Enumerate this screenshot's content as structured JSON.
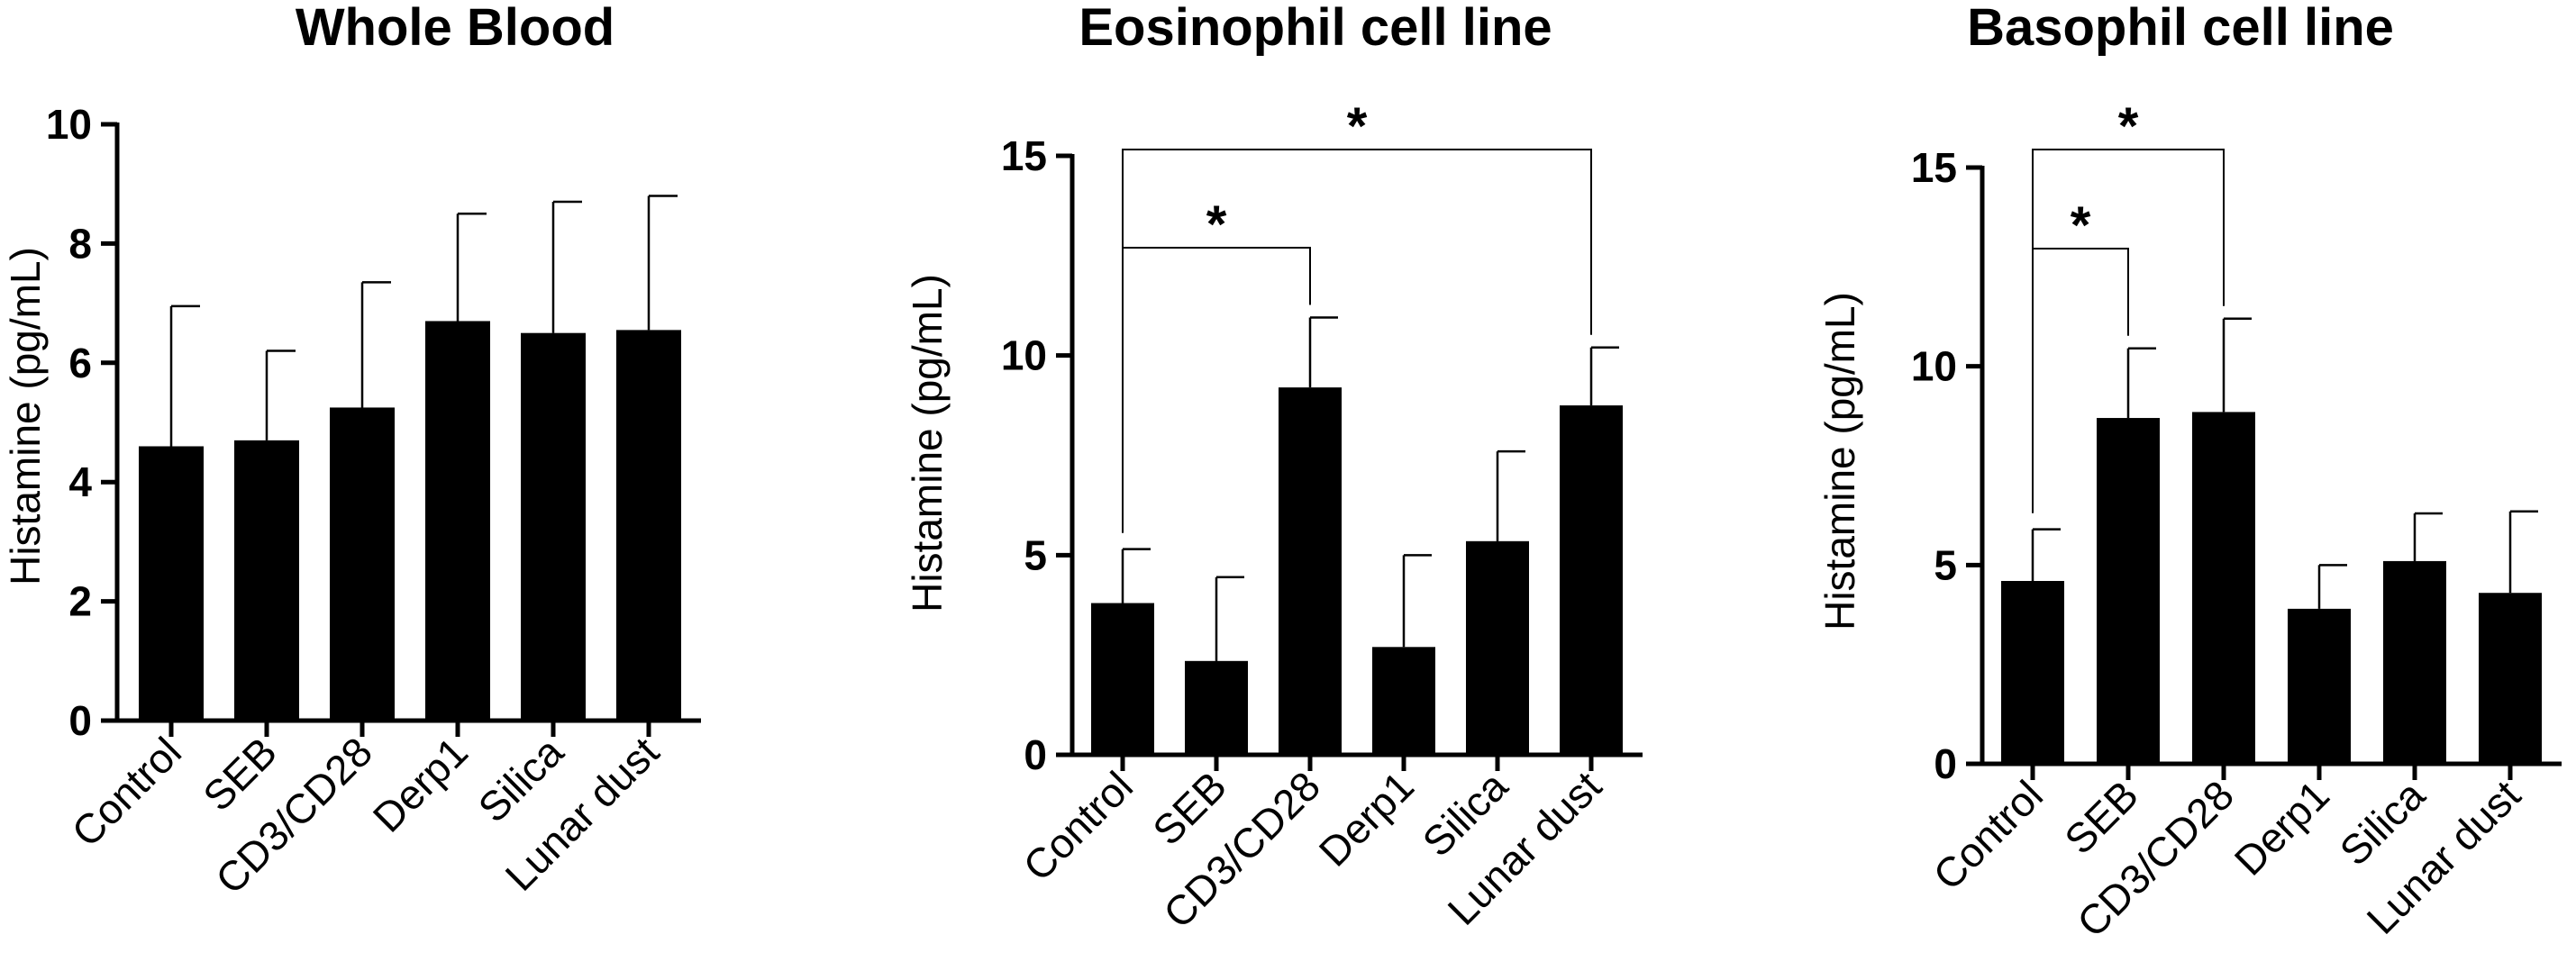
{
  "chart_data": [
    {
      "type": "bar",
      "title": "Whole Blood",
      "ylabel": "Histamine (pg/mL)",
      "categories": [
        "Control",
        "SEB",
        "CD3/CD28",
        "Derp1",
        "Silica",
        "Lunar dust"
      ],
      "values": [
        4.6,
        4.7,
        5.25,
        6.7,
        6.5,
        6.55
      ],
      "errors": [
        2.35,
        1.5,
        2.1,
        1.8,
        2.2,
        2.25
      ],
      "ylim": [
        0,
        10
      ],
      "yticks": [
        "0",
        "2",
        "4",
        "6",
        "8",
        "10"
      ],
      "significance": [],
      "bar_color": "#000000"
    },
    {
      "type": "bar",
      "title": "Eosinophil cell line",
      "ylabel": "Histamine (pg/mL)",
      "categories": [
        "Control",
        "SEB",
        "CD3/CD28",
        "Derp1",
        "Silica",
        "Lunar dust"
      ],
      "values": [
        3.8,
        2.35,
        9.2,
        2.7,
        5.35,
        8.75
      ],
      "errors": [
        1.35,
        2.1,
        1.75,
        2.3,
        2.25,
        1.45
      ],
      "ylim": [
        0,
        15
      ],
      "yticks": [
        "0",
        "5",
        "10",
        "15"
      ],
      "significance": [
        {
          "from": 0,
          "to": 2,
          "label": "*"
        },
        {
          "from": 0,
          "to": 5,
          "label": "*"
        }
      ],
      "bar_color": "#000000"
    },
    {
      "type": "bar",
      "title": "Basophil cell line",
      "ylabel": "Histamine (pg/mL)",
      "categories": [
        "Control",
        "SEB",
        "CD3/CD28",
        "Derp1",
        "Silica",
        "Lunar dust"
      ],
      "values": [
        4.6,
        8.7,
        8.85,
        3.9,
        5.1,
        4.3
      ],
      "errors": [
        1.3,
        1.75,
        2.35,
        1.1,
        1.2,
        2.05
      ],
      "ylim": [
        0,
        15
      ],
      "yticks": [
        "0",
        "5",
        "10",
        "15"
      ],
      "significance": [
        {
          "from": 0,
          "to": 1,
          "label": "*"
        },
        {
          "from": 0,
          "to": 2,
          "label": "*"
        }
      ],
      "bar_color": "#000000"
    }
  ]
}
